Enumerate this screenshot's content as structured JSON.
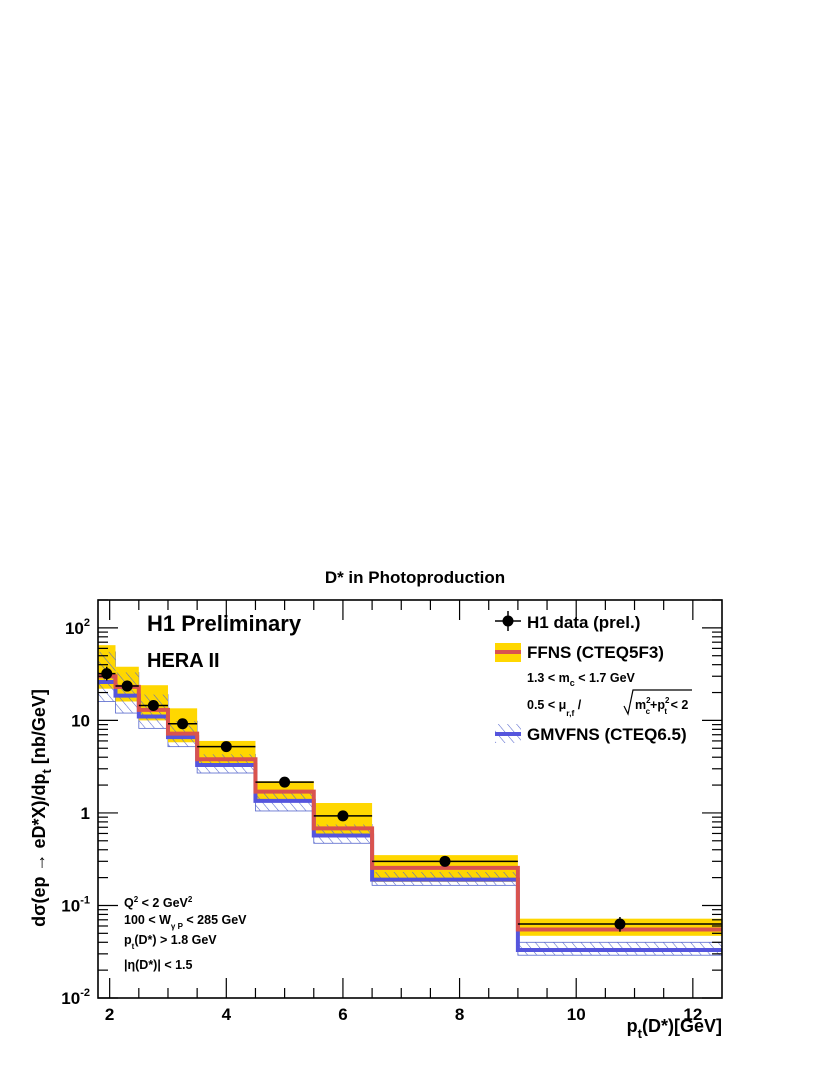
{
  "chart_data": {
    "type": "step-histogram",
    "title": "D* in Photoproduction",
    "xlabel_main": "p",
    "xlabel_sub": "t",
    "xlabel_tail": "(D*)[GeV]",
    "ylabel_main": "dσ(ep → eD*X)/dp",
    "ylabel_sub": "t",
    "ylabel_tail": " [nb/GeV]",
    "xlim": [
      1.8,
      12.5
    ],
    "ylim": [
      0.01,
      200
    ],
    "yscale": "log",
    "x_ticks": [
      {
        "value": 2,
        "label": "2"
      },
      {
        "value": 4,
        "label": "4"
      },
      {
        "value": 6,
        "label": "6"
      },
      {
        "value": 8,
        "label": "8"
      },
      {
        "value": 10,
        "label": "10"
      },
      {
        "value": 12,
        "label": "12"
      }
    ],
    "y_ticks": [
      {
        "value": 0.01,
        "base": "10",
        "exp": "-2"
      },
      {
        "value": 0.1,
        "base": "10",
        "exp": "-1"
      },
      {
        "value": 1,
        "base": "1",
        "exp": ""
      },
      {
        "value": 10,
        "base": "10",
        "exp": ""
      },
      {
        "value": 100,
        "base": "10",
        "exp": "2"
      }
    ],
    "bins": [
      1.8,
      2.1,
      2.5,
      3.0,
      3.5,
      4.5,
      5.5,
      6.5,
      9.0,
      12.5
    ],
    "data_points": [
      {
        "x": 1.95,
        "y": 32,
        "yerr_low": 27,
        "yerr_high": 38
      },
      {
        "x": 2.3,
        "y": 23.5,
        "yerr_low": 20.5,
        "yerr_high": 27
      },
      {
        "x": 2.75,
        "y": 14.5,
        "yerr_low": 12.8,
        "yerr_high": 16.5
      },
      {
        "x": 3.25,
        "y": 9.2,
        "yerr_low": 8.2,
        "yerr_high": 10.3
      },
      {
        "x": 4.0,
        "y": 5.2,
        "yerr_low": 4.7,
        "yerr_high": 5.8
      },
      {
        "x": 5.0,
        "y": 2.15,
        "yerr_low": 1.95,
        "yerr_high": 2.4
      },
      {
        "x": 6.0,
        "y": 0.93,
        "yerr_low": 0.83,
        "yerr_high": 1.03
      },
      {
        "x": 7.75,
        "y": 0.3,
        "yerr_low": 0.27,
        "yerr_high": 0.33
      },
      {
        "x": 10.75,
        "y": 0.063,
        "yerr_low": 0.052,
        "yerr_high": 0.075
      }
    ],
    "series": [
      {
        "name": "FFNS (CTEQ5F3)",
        "central": [
          30,
          23,
          13,
          7.2,
          3.8,
          1.7,
          0.68,
          0.255,
          0.055
        ],
        "band_low": [
          22,
          16,
          10,
          5.8,
          3.2,
          1.3,
          0.55,
          0.18,
          0.047
        ],
        "band_high": [
          65,
          38,
          24,
          13.5,
          6.0,
          2.2,
          1.28,
          0.35,
          0.072
        ],
        "color": "#d9534f",
        "band_color": "#ffd700"
      },
      {
        "name": "GMVFNS (CTEQ6.5)",
        "central": [
          26,
          18.5,
          11,
          6.6,
          3.3,
          1.35,
          0.57,
          0.19,
          0.033
        ],
        "band_low": [
          16,
          12,
          8.2,
          5.2,
          2.7,
          1.05,
          0.47,
          0.165,
          0.029
        ],
        "band_high": [
          55,
          33,
          19,
          9.8,
          4.3,
          1.7,
          0.75,
          0.23,
          0.04
        ],
        "color": "#5555dd",
        "band_color": "#5566cc"
      }
    ],
    "legend_position": "top-right",
    "legend": {
      "data_label": "H1 data (prel.)",
      "ffns_label": "FFNS (CTEQ5F3)",
      "gmvfns_label": "GMVFNS (CTEQ6.5)"
    },
    "annotations": {
      "prelim": "H1 Preliminary",
      "hera": "HERA II",
      "mc_range": {
        "pre": "1.3 < m",
        "sub": "c",
        "post": " < 1.7 GeV"
      },
      "mu_range": {
        "pre": "0.5 < μ",
        "sub": "r,f",
        "mid": " / ",
        "sqrt_a": "m",
        "sqrt_a_sup": "2",
        "sqrt_a_sub": "c",
        "plus": "+p",
        "sqrt_b_sup": "2",
        "sqrt_b_sub": "t",
        "post": " < 2"
      },
      "q2": {
        "pre": "Q",
        "sup": "2",
        "mid": " < 2 GeV",
        "sup2": "2"
      },
      "w_range": {
        "pre": "100 < W",
        "sub": "γ P",
        "post": " < 285 GeV"
      },
      "pt_cut": {
        "pre": "p",
        "sub": "t",
        "post": "(D*) > 1.8 GeV"
      },
      "eta_cut": "|η(D*)| < 1.5"
    }
  }
}
